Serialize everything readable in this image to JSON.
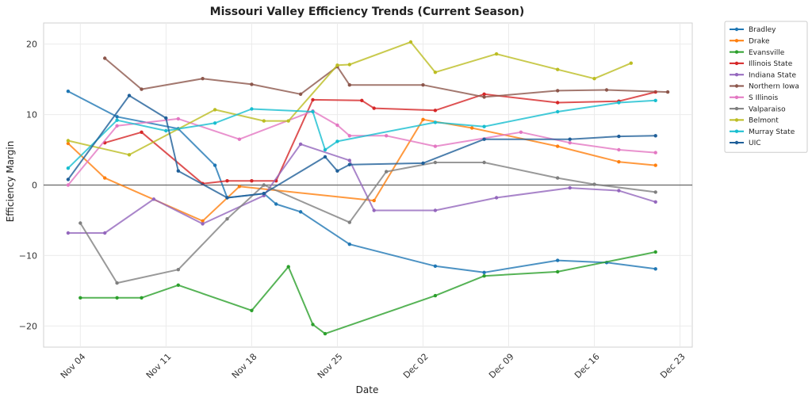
{
  "chart_data": {
    "type": "line",
    "title": "Missouri Valley Efficiency Trends (Current Season)",
    "xlabel": "Date",
    "ylabel": "Efficiency Margin",
    "xlim": [
      "2024-11-01",
      "2024-12-24"
    ],
    "ylim": [
      -23,
      23
    ],
    "xticks": [
      {
        "date": "2024-11-04",
        "label": "Nov 04"
      },
      {
        "date": "2024-11-11",
        "label": "Nov 11"
      },
      {
        "date": "2024-11-18",
        "label": "Nov 18"
      },
      {
        "date": "2024-11-25",
        "label": "Nov 25"
      },
      {
        "date": "2024-12-02",
        "label": "Dec 02"
      },
      {
        "date": "2024-12-09",
        "label": "Dec 09"
      },
      {
        "date": "2024-12-16",
        "label": "Dec 16"
      },
      {
        "date": "2024-12-23",
        "label": "Dec 23"
      }
    ],
    "yticks": [
      {
        "value": -20,
        "label": "−20"
      },
      {
        "value": -10,
        "label": "−10"
      },
      {
        "value": 0,
        "label": "0"
      },
      {
        "value": 10,
        "label": "10"
      },
      {
        "value": 20,
        "label": "20"
      }
    ],
    "grid": true,
    "zero_line": true,
    "legend_position": "outside-top-right",
    "series": [
      {
        "name": "Bradley",
        "color": "#1f77b4",
        "points": [
          [
            "2024-11-03",
            13.3
          ],
          [
            "2024-11-07",
            9.7
          ],
          [
            "2024-11-12",
            8.0
          ],
          [
            "2024-11-15",
            2.8
          ],
          [
            "2024-11-16",
            -1.8
          ],
          [
            "2024-11-19",
            -1.2
          ],
          [
            "2024-11-20",
            -2.7
          ],
          [
            "2024-11-22",
            -3.8
          ],
          [
            "2024-11-26",
            -8.4
          ],
          [
            "2024-12-03",
            -11.5
          ],
          [
            "2024-12-07",
            -12.4
          ],
          [
            "2024-12-13",
            -10.7
          ],
          [
            "2024-12-17",
            -11.0
          ],
          [
            "2024-12-21",
            -11.9
          ]
        ]
      },
      {
        "name": "Drake",
        "color": "#ff7f0e",
        "points": [
          [
            "2024-11-03",
            5.9
          ],
          [
            "2024-11-06",
            1.0
          ],
          [
            "2024-11-14",
            -5.1
          ],
          [
            "2024-11-17",
            -0.2
          ],
          [
            "2024-11-28",
            -2.2
          ],
          [
            "2024-12-02",
            9.3
          ],
          [
            "2024-12-06",
            8.1
          ],
          [
            "2024-12-13",
            5.5
          ],
          [
            "2024-12-18",
            3.3
          ],
          [
            "2024-12-21",
            2.8
          ]
        ]
      },
      {
        "name": "Evansville",
        "color": "#2ca02c",
        "points": [
          [
            "2024-11-04",
            -16.0
          ],
          [
            "2024-11-07",
            -16.0
          ],
          [
            "2024-11-09",
            -16.0
          ],
          [
            "2024-11-12",
            -14.2
          ],
          [
            "2024-11-18",
            -17.8
          ],
          [
            "2024-11-21",
            -11.6
          ],
          [
            "2024-11-23",
            -19.8
          ],
          [
            "2024-11-24",
            -21.1
          ],
          [
            "2024-12-03",
            -15.7
          ],
          [
            "2024-12-07",
            -12.9
          ],
          [
            "2024-12-13",
            -12.3
          ],
          [
            "2024-12-21",
            -9.5
          ]
        ]
      },
      {
        "name": "Illinois State",
        "color": "#d62728",
        "points": [
          [
            "2024-11-06",
            6.0
          ],
          [
            "2024-11-09",
            7.5
          ],
          [
            "2024-11-14",
            0.2
          ],
          [
            "2024-11-16",
            0.6
          ],
          [
            "2024-11-18",
            0.6
          ],
          [
            "2024-11-20",
            0.6
          ],
          [
            "2024-11-23",
            12.1
          ],
          [
            "2024-11-27",
            12.0
          ],
          [
            "2024-11-28",
            10.9
          ],
          [
            "2024-12-03",
            10.6
          ],
          [
            "2024-12-07",
            12.9
          ],
          [
            "2024-12-13",
            11.7
          ],
          [
            "2024-12-18",
            11.9
          ],
          [
            "2024-12-21",
            13.2
          ]
        ]
      },
      {
        "name": "Indiana State",
        "color": "#9467bd",
        "points": [
          [
            "2024-11-03",
            -6.8
          ],
          [
            "2024-11-06",
            -6.8
          ],
          [
            "2024-11-10",
            -2.0
          ],
          [
            "2024-11-14",
            -5.5
          ],
          [
            "2024-11-19",
            -1.5
          ],
          [
            "2024-11-22",
            5.8
          ],
          [
            "2024-11-26",
            3.5
          ],
          [
            "2024-11-28",
            -3.6
          ],
          [
            "2024-12-03",
            -3.6
          ],
          [
            "2024-12-08",
            -1.8
          ],
          [
            "2024-12-14",
            -0.4
          ],
          [
            "2024-12-18",
            -0.8
          ],
          [
            "2024-12-21",
            -2.4
          ]
        ]
      },
      {
        "name": "Northern Iowa",
        "color": "#8c564b",
        "points": [
          [
            "2024-11-06",
            18.0
          ],
          [
            "2024-11-09",
            13.6
          ],
          [
            "2024-11-14",
            15.1
          ],
          [
            "2024-11-18",
            14.3
          ],
          [
            "2024-11-22",
            12.9
          ],
          [
            "2024-11-25",
            16.8
          ],
          [
            "2024-11-26",
            14.2
          ],
          [
            "2024-12-02",
            14.2
          ],
          [
            "2024-12-07",
            12.5
          ],
          [
            "2024-12-13",
            13.4
          ],
          [
            "2024-12-17",
            13.5
          ],
          [
            "2024-12-22",
            13.2
          ]
        ]
      },
      {
        "name": "S Illinois",
        "color": "#e377c2",
        "points": [
          [
            "2024-11-03",
            0.0
          ],
          [
            "2024-11-07",
            8.4
          ],
          [
            "2024-11-12",
            9.4
          ],
          [
            "2024-11-17",
            6.5
          ],
          [
            "2024-11-23",
            10.5
          ],
          [
            "2024-11-25",
            8.5
          ],
          [
            "2024-11-26",
            7.0
          ],
          [
            "2024-11-29",
            7.0
          ],
          [
            "2024-12-03",
            5.5
          ],
          [
            "2024-12-10",
            7.5
          ],
          [
            "2024-12-14",
            6.0
          ],
          [
            "2024-12-18",
            5.0
          ],
          [
            "2024-12-21",
            4.6
          ]
        ]
      },
      {
        "name": "Valparaiso",
        "color": "#7f7f7f",
        "points": [
          [
            "2024-11-04",
            -5.4
          ],
          [
            "2024-11-07",
            -13.9
          ],
          [
            "2024-11-12",
            -12.0
          ],
          [
            "2024-11-16",
            -4.8
          ],
          [
            "2024-11-19",
            0.0
          ],
          [
            "2024-11-26",
            -5.3
          ],
          [
            "2024-11-29",
            1.9
          ],
          [
            "2024-12-03",
            3.2
          ],
          [
            "2024-12-07",
            3.2
          ],
          [
            "2024-12-13",
            1.0
          ],
          [
            "2024-12-16",
            0.1
          ],
          [
            "2024-12-21",
            -1.0
          ]
        ]
      },
      {
        "name": "Belmont",
        "color": "#bcbd22",
        "points": [
          [
            "2024-11-03",
            6.3
          ],
          [
            "2024-11-08",
            4.3
          ],
          [
            "2024-11-15",
            10.7
          ],
          [
            "2024-11-19",
            9.1
          ],
          [
            "2024-11-21",
            9.1
          ],
          [
            "2024-11-25",
            17.0
          ],
          [
            "2024-11-26",
            17.1
          ],
          [
            "2024-12-01",
            20.3
          ],
          [
            "2024-12-03",
            16.0
          ],
          [
            "2024-12-08",
            18.6
          ],
          [
            "2024-12-13",
            16.4
          ],
          [
            "2024-12-16",
            15.1
          ],
          [
            "2024-12-19",
            17.3
          ]
        ]
      },
      {
        "name": "Murray State",
        "color": "#17becf",
        "points": [
          [
            "2024-11-03",
            2.4
          ],
          [
            "2024-11-07",
            9.2
          ],
          [
            "2024-11-11",
            7.7
          ],
          [
            "2024-11-15",
            8.8
          ],
          [
            "2024-11-18",
            10.8
          ],
          [
            "2024-11-23",
            10.4
          ],
          [
            "2024-11-24",
            5.0
          ],
          [
            "2024-11-25",
            6.2
          ],
          [
            "2024-12-03",
            8.9
          ],
          [
            "2024-12-07",
            8.3
          ],
          [
            "2024-12-13",
            10.4
          ],
          [
            "2024-12-18",
            11.7
          ],
          [
            "2024-12-21",
            12.0
          ]
        ]
      },
      {
        "name": "UIC",
        "color": "#1f5f99",
        "points": [
          [
            "2024-11-03",
            0.8
          ],
          [
            "2024-11-08",
            12.7
          ],
          [
            "2024-11-11",
            9.5
          ],
          [
            "2024-11-12",
            2.0
          ],
          [
            "2024-11-16",
            -1.8
          ],
          [
            "2024-11-19",
            -1.2
          ],
          [
            "2024-11-24",
            4.0
          ],
          [
            "2024-11-25",
            2.0
          ],
          [
            "2024-11-26",
            2.9
          ],
          [
            "2024-12-02",
            3.1
          ],
          [
            "2024-12-07",
            6.5
          ],
          [
            "2024-12-14",
            6.5
          ],
          [
            "2024-12-18",
            6.9
          ],
          [
            "2024-12-21",
            7.0
          ]
        ]
      }
    ]
  }
}
